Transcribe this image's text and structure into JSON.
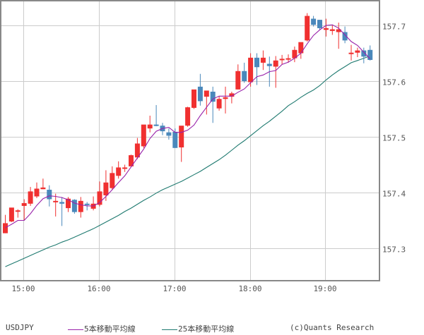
{
  "chart_data": {
    "type": "candlestick",
    "title": "USDJPY",
    "symbol": "USDJPY",
    "interval": "5min",
    "x_ticks": [
      "15:00",
      "16:00",
      "17:00",
      "18:00",
      "19:00"
    ],
    "y_ticks": [
      157.3,
      157.4,
      157.5,
      157.6,
      157.7
    ],
    "ylim": [
      157.24,
      157.745
    ],
    "grid": true,
    "legend_position": "bottom",
    "colors": {
      "up": "#f03030",
      "down": "#4a88bb",
      "ma5": "#9922aa",
      "ma25": "#1f7a70",
      "grid": "#cccccc",
      "axis": "#888888"
    },
    "candles": [
      {
        "o": 157.327,
        "h": 157.36,
        "l": 157.327,
        "c": 157.345
      },
      {
        "o": 157.348,
        "h": 157.372,
        "l": 157.347,
        "c": 157.373
      },
      {
        "o": 157.368,
        "h": 157.37,
        "l": 157.355,
        "c": 157.368
      },
      {
        "o": 157.376,
        "h": 157.388,
        "l": 157.35,
        "c": 157.381
      },
      {
        "o": 157.38,
        "h": 157.41,
        "l": 157.376,
        "c": 157.402
      },
      {
        "o": 157.393,
        "h": 157.418,
        "l": 157.39,
        "c": 157.407
      },
      {
        "o": 157.406,
        "h": 157.425,
        "l": 157.406,
        "c": 157.409
      },
      {
        "o": 157.405,
        "h": 157.413,
        "l": 157.375,
        "c": 157.388
      },
      {
        "o": 157.385,
        "h": 157.398,
        "l": 157.357,
        "c": 157.385
      },
      {
        "o": 157.383,
        "h": 157.392,
        "l": 157.34,
        "c": 157.38
      },
      {
        "o": 157.372,
        "h": 157.392,
        "l": 157.365,
        "c": 157.389
      },
      {
        "o": 157.387,
        "h": 157.388,
        "l": 157.362,
        "c": 157.365
      },
      {
        "o": 157.365,
        "h": 157.392,
        "l": 157.355,
        "c": 157.385
      },
      {
        "o": 157.38,
        "h": 157.383,
        "l": 157.368,
        "c": 157.378
      },
      {
        "o": 157.371,
        "h": 157.393,
        "l": 157.368,
        "c": 157.38
      },
      {
        "o": 157.378,
        "h": 157.42,
        "l": 157.375,
        "c": 157.402
      },
      {
        "o": 157.395,
        "h": 157.44,
        "l": 157.385,
        "c": 157.418
      },
      {
        "o": 157.408,
        "h": 157.447,
        "l": 157.405,
        "c": 157.435
      },
      {
        "o": 157.43,
        "h": 157.456,
        "l": 157.425,
        "c": 157.445
      },
      {
        "o": 157.443,
        "h": 157.45,
        "l": 157.437,
        "c": 157.445
      },
      {
        "o": 157.447,
        "h": 157.468,
        "l": 157.446,
        "c": 157.467
      },
      {
        "o": 157.463,
        "h": 157.498,
        "l": 157.46,
        "c": 157.488
      },
      {
        "o": 157.483,
        "h": 157.512,
        "l": 157.48,
        "c": 157.522
      },
      {
        "o": 157.515,
        "h": 157.538,
        "l": 157.508,
        "c": 157.522
      },
      {
        "o": 157.522,
        "h": 157.557,
        "l": 157.519,
        "c": 157.521
      },
      {
        "o": 157.52,
        "h": 157.525,
        "l": 157.503,
        "c": 157.51
      },
      {
        "o": 157.508,
        "h": 157.515,
        "l": 157.495,
        "c": 157.502
      },
      {
        "o": 157.509,
        "h": 157.515,
        "l": 157.48,
        "c": 157.48
      },
      {
        "o": 157.481,
        "h": 157.518,
        "l": 157.455,
        "c": 157.52
      },
      {
        "o": 157.52,
        "h": 157.554,
        "l": 157.518,
        "c": 157.553
      },
      {
        "o": 157.552,
        "h": 157.575,
        "l": 157.55,
        "c": 157.585
      },
      {
        "o": 157.59,
        "h": 157.613,
        "l": 157.556,
        "c": 157.564
      },
      {
        "o": 157.572,
        "h": 157.58,
        "l": 157.54,
        "c": 157.583
      },
      {
        "o": 157.581,
        "h": 157.59,
        "l": 157.525,
        "c": 157.563
      },
      {
        "o": 157.551,
        "h": 157.573,
        "l": 157.547,
        "c": 157.568
      },
      {
        "o": 157.568,
        "h": 157.59,
        "l": 157.542,
        "c": 157.571
      },
      {
        "o": 157.572,
        "h": 157.581,
        "l": 157.56,
        "c": 157.578
      },
      {
        "o": 157.585,
        "h": 157.63,
        "l": 157.585,
        "c": 157.618
      },
      {
        "o": 157.618,
        "h": 157.633,
        "l": 157.597,
        "c": 157.6
      },
      {
        "o": 157.598,
        "h": 157.65,
        "l": 157.59,
        "c": 157.642
      },
      {
        "o": 157.642,
        "h": 157.65,
        "l": 157.593,
        "c": 157.625
      },
      {
        "o": 157.633,
        "h": 157.655,
        "l": 157.62,
        "c": 157.642
      },
      {
        "o": 157.631,
        "h": 157.644,
        "l": 157.59,
        "c": 157.627
      },
      {
        "o": 157.626,
        "h": 157.645,
        "l": 157.588,
        "c": 157.637
      },
      {
        "o": 157.638,
        "h": 157.647,
        "l": 157.63,
        "c": 157.64
      },
      {
        "o": 157.64,
        "h": 157.648,
        "l": 157.633,
        "c": 157.641
      },
      {
        "o": 157.641,
        "h": 157.662,
        "l": 157.634,
        "c": 157.656
      },
      {
        "o": 157.65,
        "h": 157.668,
        "l": 157.64,
        "c": 157.67
      },
      {
        "o": 157.673,
        "h": 157.722,
        "l": 157.671,
        "c": 157.717
      },
      {
        "o": 157.712,
        "h": 157.717,
        "l": 157.698,
        "c": 157.701
      },
      {
        "o": 157.71,
        "h": 157.71,
        "l": 157.692,
        "c": 157.695
      },
      {
        "o": 157.692,
        "h": 157.712,
        "l": 157.68,
        "c": 157.695
      },
      {
        "o": 157.69,
        "h": 157.7,
        "l": 157.683,
        "c": 157.693
      },
      {
        "o": 157.688,
        "h": 157.705,
        "l": 157.658,
        "c": 157.693
      },
      {
        "o": 157.688,
        "h": 157.698,
        "l": 157.668,
        "c": 157.673
      },
      {
        "o": 157.65,
        "h": 157.665,
        "l": 157.637,
        "c": 157.651
      },
      {
        "o": 157.651,
        "h": 157.66,
        "l": 157.643,
        "c": 157.655
      },
      {
        "o": 157.655,
        "h": 157.66,
        "l": 157.632,
        "c": 157.644
      },
      {
        "o": 157.656,
        "h": 157.664,
        "l": 157.637,
        "c": 157.638
      }
    ],
    "ma5": [
      157.337,
      157.343,
      157.35,
      157.35,
      157.362,
      157.377,
      157.389,
      157.394,
      157.393,
      157.391,
      157.387,
      157.381,
      157.378,
      157.376,
      157.376,
      157.382,
      157.393,
      157.405,
      157.418,
      157.43,
      157.446,
      157.462,
      157.478,
      157.497,
      157.51,
      157.515,
      157.517,
      157.508,
      157.508,
      157.512,
      157.521,
      157.538,
      157.553,
      157.568,
      157.573,
      157.573,
      157.573,
      157.58,
      157.586,
      157.597,
      157.608,
      157.611,
      157.617,
      157.619,
      157.63,
      157.634,
      157.641,
      157.65,
      157.667,
      157.682,
      157.692,
      157.7,
      157.701,
      157.695,
      157.683,
      157.671,
      157.664,
      157.652,
      157.64
    ],
    "ma25": [
      157.267,
      157.272,
      157.277,
      157.282,
      157.287,
      157.292,
      157.297,
      157.302,
      157.306,
      157.311,
      157.315,
      157.32,
      157.325,
      157.33,
      157.335,
      157.341,
      157.347,
      157.353,
      157.359,
      157.366,
      157.372,
      157.379,
      157.386,
      157.392,
      157.399,
      157.405,
      157.41,
      157.415,
      157.42,
      157.426,
      157.432,
      157.438,
      157.445,
      157.452,
      157.459,
      157.467,
      157.476,
      157.485,
      157.493,
      157.502,
      157.511,
      157.52,
      157.528,
      157.537,
      157.546,
      157.556,
      157.563,
      157.571,
      157.578,
      157.584,
      157.592,
      157.602,
      157.611,
      157.619,
      157.626,
      157.633,
      157.637,
      157.641,
      157.645
    ]
  },
  "axis": {
    "x_labels": [
      "15:00",
      "16:00",
      "17:00",
      "18:00",
      "19:00"
    ],
    "y_labels": [
      "157.7",
      "157.6",
      "157.5",
      "157.4",
      "157.3"
    ]
  },
  "legend": {
    "symbol": "USDJPY",
    "ma5_label": "5本移動平均線",
    "ma25_label": "25本移動平均線",
    "copyright": "(c)Quants Research"
  }
}
